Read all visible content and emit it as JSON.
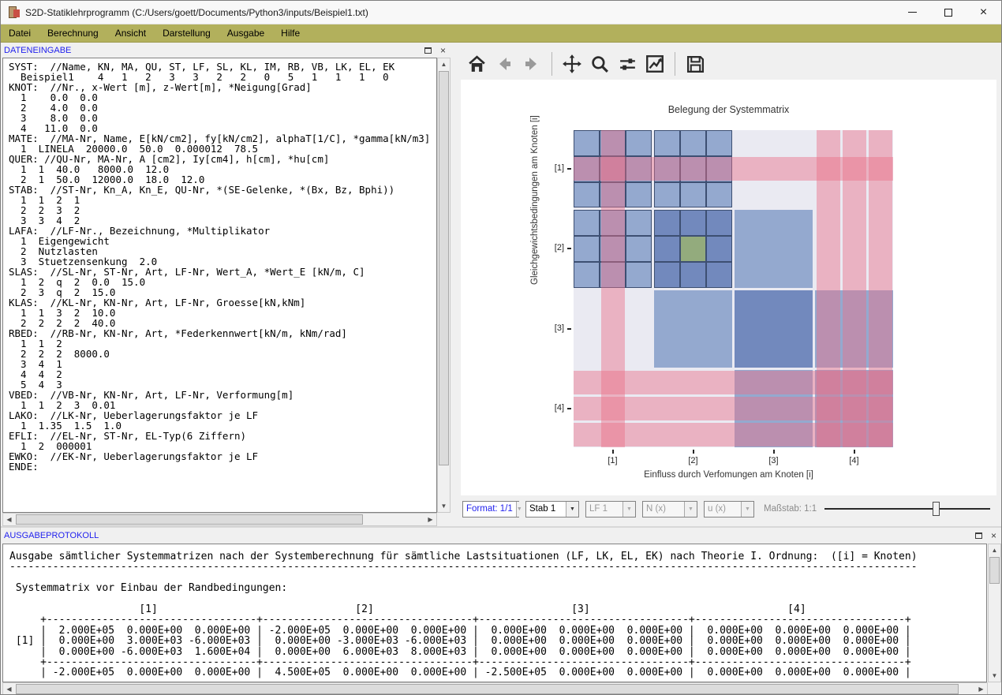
{
  "window": {
    "title": "S2D-Statiklehrprogramm (C:/Users/goett/Documents/Python3/inputs/Beispiel1.txt)",
    "controls": {
      "minimize": "minimize",
      "maximize": "maximize",
      "close": "close"
    }
  },
  "menu": {
    "items": [
      "Datei",
      "Berechnung",
      "Ansicht",
      "Darstellung",
      "Ausgabe",
      "Hilfe"
    ]
  },
  "data_panel": {
    "title": "DATENEINGABE",
    "lines": [
      "SYST:  //Name, KN, MA, QU, ST, LF, SL, KL, IM, RB, VB, LK, EL, EK",
      "  Beispiel1    4   1   2   3   3   2   2   0   5   1   1   1   0",
      "KNOT:  //Nr., x-Wert [m], z-Wert[m], *Neigung[Grad]",
      "  1    0.0  0.0",
      "  2    4.0  0.0",
      "  3    8.0  0.0",
      "  4   11.0  0.0",
      "MATE:  //MA-Nr, Name, E[kN/cm2], fy[kN/cm2], alphaT[1/C], *gamma[kN/m3]",
      "  1  LINELA  20000.0  50.0  0.000012  78.5",
      "QUER: //QU-Nr, MA-Nr, A [cm2], Iy[cm4], h[cm], *hu[cm]",
      "  1  1  40.0   8000.0  12.0",
      "  2  1  50.0  12000.0  18.0  12.0",
      "STAB:  //ST-Nr, Kn_A, Kn_E, QU-Nr, *(SE-Gelenke, *(Bx, Bz, Bphi))",
      "  1  1  2  1",
      "  2  2  3  2",
      "  3  3  4  2",
      "LAFA:  //LF-Nr., Bezeichnung, *Multiplikator",
      "  1  Eigengewicht",
      "  2  Nutzlasten",
      "  3  Stuetzensenkung  2.0",
      "SLAS:  //SL-Nr, ST-Nr, Art, LF-Nr, Wert_A, *Wert_E [kN/m, C]",
      "  1  2  q  2  0.0  15.0",
      "  2  3  q  2  15.0",
      "KLAS:  //KL-Nr, KN-Nr, Art, LF-Nr, Groesse[kN,kNm]",
      "  1  1  3  2  10.0",
      "  2  2  2  2  40.0",
      "RBED:  //RB-Nr, KN-Nr, Art, *Federkennwert[kN/m, kNm/rad]",
      "  1  1  2",
      "  2  2  2  8000.0",
      "  3  4  1",
      "  4  4  2",
      "  5  4  3",
      "VBED:  //VB-Nr, KN-Nr, Art, LF-Nr, Verformung[m]",
      "  1  1  2  3  0.01",
      "LAKO:  //LK-Nr, Ueberlagerungsfaktor je LF",
      "  1  1.35  1.5  1.0",
      "EFLI:  //EL-Nr, ST-Nr, EL-Typ(6 Ziffern)",
      "  1  2  000001",
      "EWKO:  //EK-Nr, Ueberlagerungsfaktor je LF",
      "ENDE:"
    ]
  },
  "plot": {
    "toolbar_icons": [
      "home-icon",
      "back-icon",
      "forward-icon",
      "pan-icon",
      "zoom-icon",
      "subplots-icon",
      "axes-edit-icon",
      "save-icon"
    ]
  },
  "chart_data": {
    "type": "heatmap",
    "title": "Belegung der Systemmatrix",
    "xlabel": "Einfluss durch Verfomungen am Knoten [i]",
    "ylabel": "Gleichgewichtsbedingungen am Knoten [i]",
    "xticklabels": [
      "[1]",
      "[2]",
      "[3]",
      "[4]"
    ],
    "yticklabels": [
      "[1]",
      "[2]",
      "[3]",
      "[4]"
    ],
    "matrix_size": 12,
    "cell_legend": {
      "0": "empty",
      "1": "element-stiffness",
      "2": "stiffness-overlap",
      "3": "spring-entry"
    },
    "cells": [
      [
        1,
        1,
        1,
        1,
        1,
        1,
        0,
        0,
        0,
        0,
        0,
        0
      ],
      [
        1,
        1,
        1,
        1,
        1,
        1,
        0,
        0,
        0,
        0,
        0,
        0
      ],
      [
        1,
        1,
        1,
        1,
        1,
        1,
        0,
        0,
        0,
        0,
        0,
        0
      ],
      [
        1,
        1,
        1,
        2,
        2,
        2,
        1,
        1,
        1,
        0,
        0,
        0
      ],
      [
        1,
        1,
        1,
        2,
        3,
        2,
        1,
        1,
        1,
        0,
        0,
        0
      ],
      [
        1,
        1,
        1,
        2,
        2,
        2,
        1,
        1,
        1,
        0,
        0,
        0
      ],
      [
        0,
        0,
        0,
        1,
        1,
        1,
        2,
        2,
        2,
        1,
        1,
        1
      ],
      [
        0,
        0,
        0,
        1,
        1,
        1,
        2,
        2,
        2,
        1,
        1,
        1
      ],
      [
        0,
        0,
        0,
        1,
        1,
        1,
        2,
        2,
        2,
        1,
        1,
        1
      ],
      [
        0,
        0,
        0,
        0,
        0,
        0,
        1,
        1,
        1,
        1,
        1,
        1
      ],
      [
        0,
        0,
        0,
        0,
        0,
        0,
        1,
        1,
        1,
        1,
        1,
        1
      ],
      [
        0,
        0,
        0,
        0,
        0,
        0,
        1,
        1,
        1,
        1,
        1,
        1
      ]
    ],
    "pink_rows": [
      1,
      9,
      10,
      11
    ],
    "pink_cols": [
      1,
      9,
      10,
      11
    ],
    "bordered_region_note": "rows 0-5 x cols 0-5 drawn as outlined cells (Stab 1 selected)",
    "colors": {
      "light_blue": "#94a9cf",
      "dark_blue": "#7289bd",
      "green": "#93ab7d",
      "pink_overlay": "rgba(235,110,135,0.45)",
      "axes_bg": "#eaeaf2",
      "cell_border": "#3d4f72"
    }
  },
  "controls": {
    "format": "Format: 1/1",
    "stab": "Stab 1",
    "lf": "LF 1",
    "force": "N (x)",
    "displacement": "u (x)",
    "scale_label": "Maßstab: 1:1"
  },
  "output_panel": {
    "title": "AUSGABEPROTOKOLL",
    "lines": [
      "Ausgabe sämtlicher Systemmatrizen nach der Systemberechnung für sämtliche Lastsituationen (LF, LK, EL, EK) nach Theorie I. Ordnung:  ([i] = Knoten)",
      "---------------------------------------------------------------------------------------------------------------------------------------------------",
      "",
      " Systemmatrix vor Einbau der Randbedingungen:",
      "",
      "                     [1]                                [2]                                [3]                                [4]",
      "     +----------------------------------+----------------------------------+----------------------------------+----------------------------------+",
      "     |  2.000E+05  0.000E+00  0.000E+00 | -2.000E+05  0.000E+00  0.000E+00 |  0.000E+00  0.000E+00  0.000E+00 |  0.000E+00  0.000E+00  0.000E+00 |",
      " [1] |  0.000E+00  3.000E+03 -6.000E+03 |  0.000E+00 -3.000E+03 -6.000E+03 |  0.000E+00  0.000E+00  0.000E+00 |  0.000E+00  0.000E+00  0.000E+00 |",
      "     |  0.000E+00 -6.000E+03  1.600E+04 |  0.000E+00  6.000E+03  8.000E+03 |  0.000E+00  0.000E+00  0.000E+00 |  0.000E+00  0.000E+00  0.000E+00 |",
      "     +----------------------------------+----------------------------------+----------------------------------+----------------------------------+",
      "     | -2.000E+05  0.000E+00  0.000E+00 |  4.500E+05  0.000E+00  0.000E+00 | -2.500E+05  0.000E+00  0.000E+00 |  0.000E+00  0.000E+00  0.000E+00 |"
    ]
  }
}
